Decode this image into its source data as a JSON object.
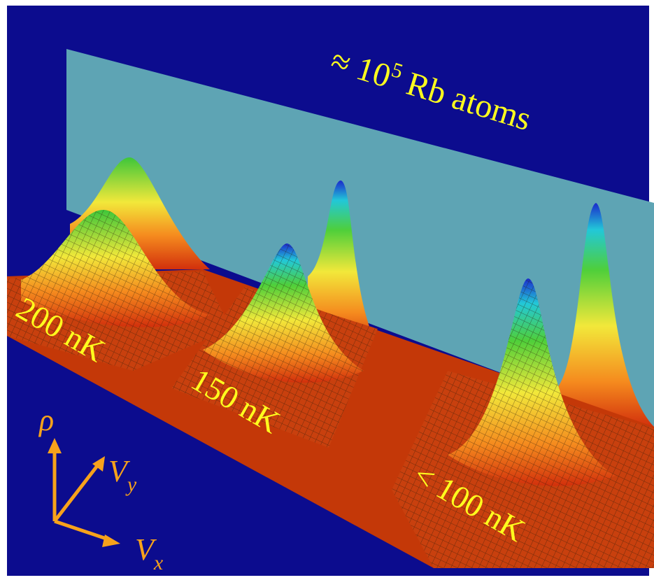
{
  "title": {
    "prefix": "≈ 10",
    "superscript": "5",
    "suffix": "Rb atoms"
  },
  "labels": [
    "200 nK",
    "150 nK",
    "< 100 nK"
  ],
  "axes": {
    "rho": "ρ",
    "vy": {
      "base": "V",
      "sub": "y"
    },
    "vx": {
      "base": "V",
      "sub": "x"
    }
  }
}
